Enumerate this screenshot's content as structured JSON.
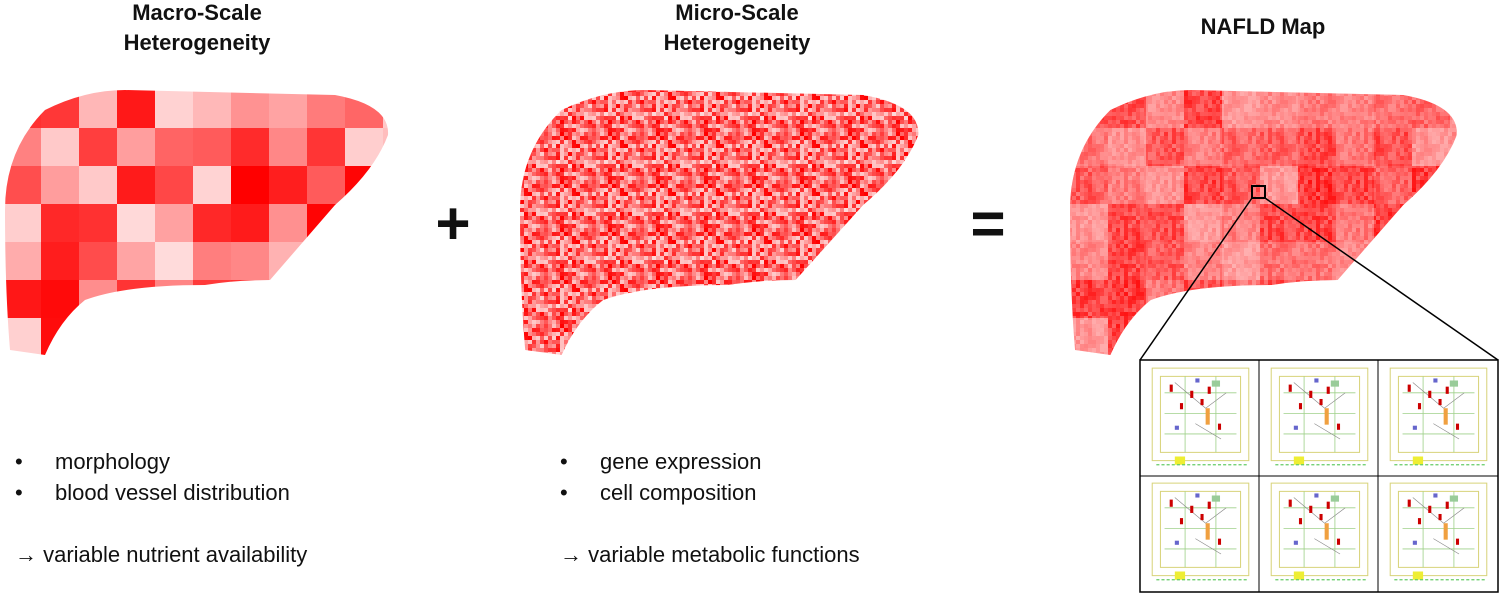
{
  "panels": [
    {
      "title_lines": [
        "Macro-Scale",
        "Heterogeneity"
      ],
      "bullets": [
        "morphology",
        "blood vessel distribution"
      ],
      "conclusion": "→ variable nutrient availability"
    },
    {
      "title_lines": [
        "Micro-Scale",
        "Heterogeneity"
      ],
      "bullets": [
        "gene expression",
        "cell composition"
      ],
      "conclusion": "→ variable metabolic functions"
    },
    {
      "title_lines": [
        "NAFLD Map"
      ]
    }
  ],
  "operators": [
    "+",
    "="
  ]
}
